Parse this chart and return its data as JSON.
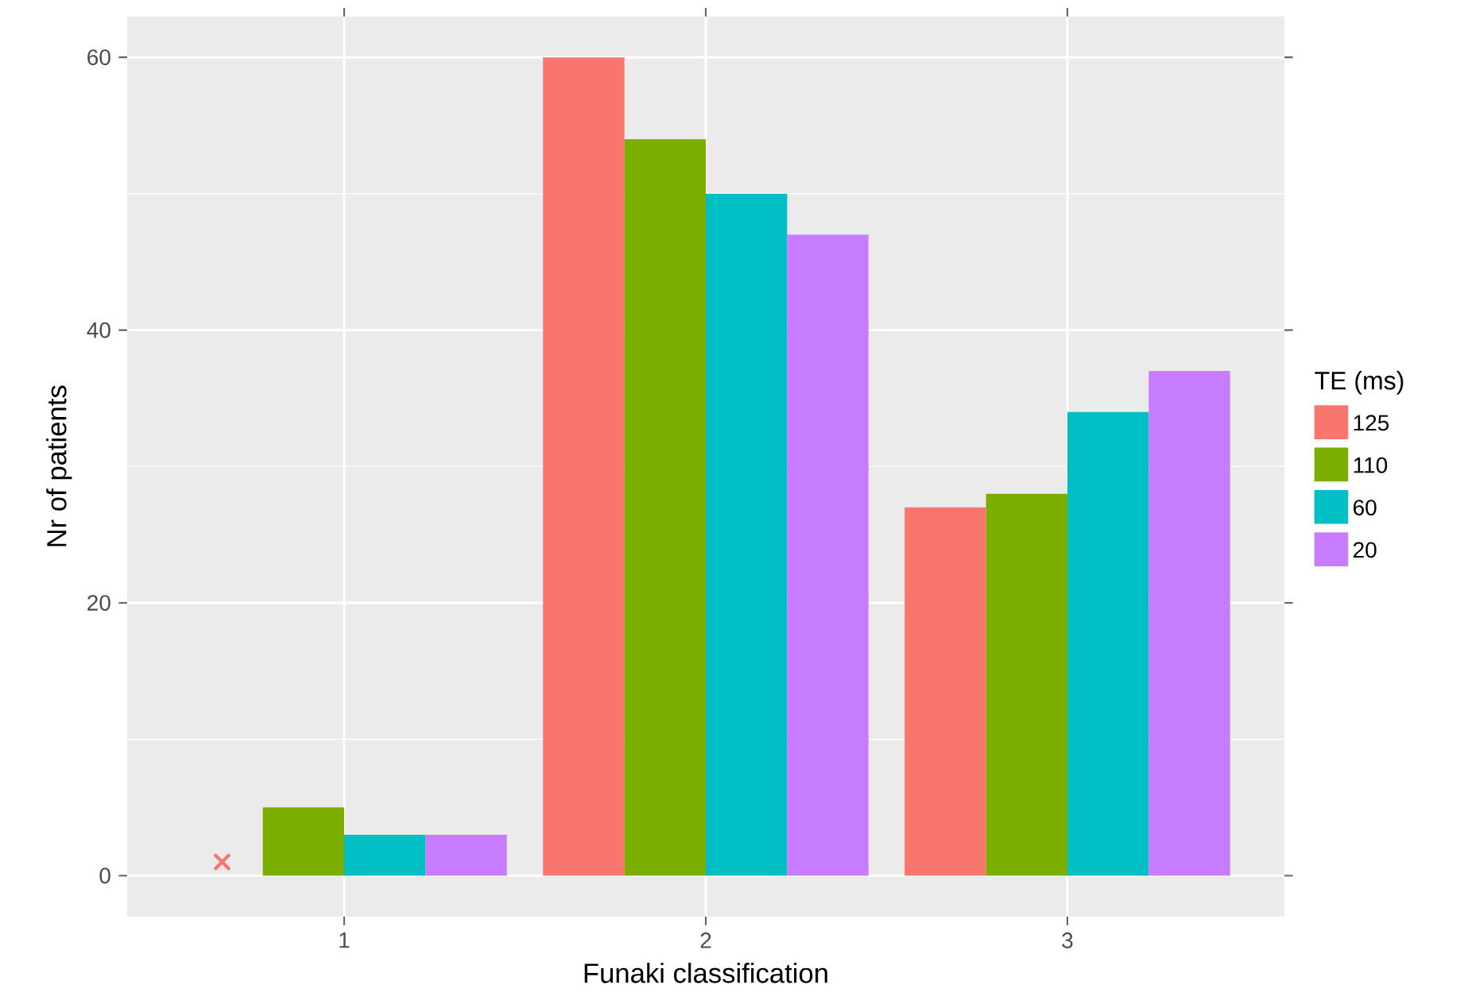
{
  "chart_data": {
    "type": "bar",
    "xlabel": "Funaki classification",
    "ylabel": "Nr of patients",
    "legend_title": "TE (ms)",
    "categories": [
      "1",
      "2",
      "3"
    ],
    "series": [
      {
        "name": "125",
        "color": "#f8766d",
        "values": [
          null,
          60,
          27
        ]
      },
      {
        "name": "110",
        "color": "#7cae00",
        "values": [
          5,
          54,
          28
        ]
      },
      {
        "name": "60",
        "color": "#00bfc4",
        "values": [
          3,
          50,
          34
        ]
      },
      {
        "name": "20",
        "color": "#c77cff",
        "values": [
          3,
          47,
          37
        ]
      },
      {
        "type": "scatter",
        "color": "#f8766d",
        "marker": "cross",
        "x": [
          "1"
        ],
        "values": [
          1
        ]
      }
    ],
    "ylim": [
      -3,
      63
    ],
    "yticks": [
      0,
      20,
      40,
      60
    ],
    "grid": true,
    "legend": "right"
  }
}
